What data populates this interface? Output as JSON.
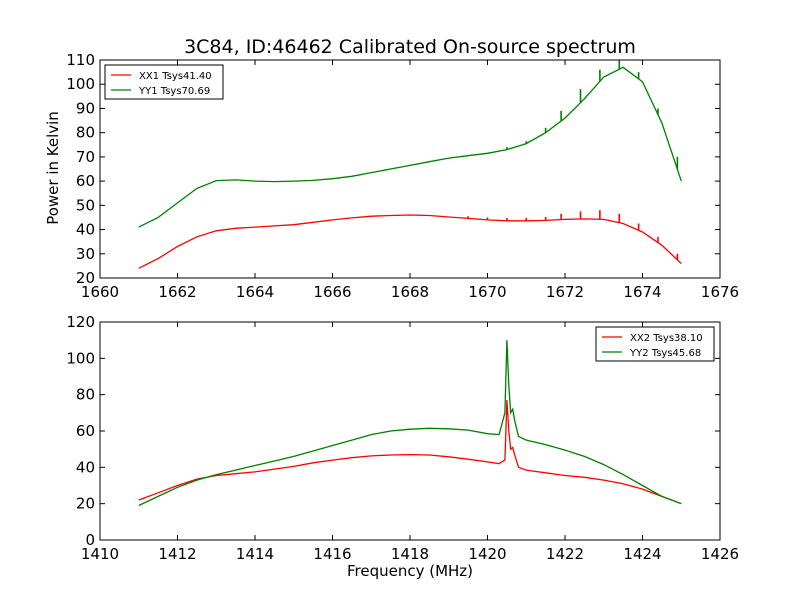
{
  "chart_data": [
    {
      "type": "line",
      "title": "3C84, ID:46462 Calibrated On-source spectrum",
      "xlabel": "",
      "ylabel": "Power in Kelvin",
      "xlim": [
        1660,
        1676
      ],
      "ylim": [
        20,
        110
      ],
      "xticks": [
        1660,
        1662,
        1664,
        1666,
        1668,
        1670,
        1672,
        1674,
        1676
      ],
      "yticks": [
        20,
        30,
        40,
        50,
        60,
        70,
        80,
        90,
        100,
        110
      ],
      "legend_position": "top-left",
      "series": [
        {
          "name": "XX1 Tsys41.40",
          "color": "#ff0000",
          "x": [
            1661.0,
            1661.5,
            1662.0,
            1662.5,
            1663.0,
            1663.5,
            1664.0,
            1664.5,
            1665.0,
            1665.5,
            1666.0,
            1666.5,
            1667.0,
            1667.5,
            1668.0,
            1668.5,
            1669.0,
            1669.5,
            1670.0,
            1670.5,
            1671.0,
            1671.5,
            1672.0,
            1672.5,
            1673.0,
            1673.5,
            1674.0,
            1674.5,
            1675.0
          ],
          "y": [
            24,
            28,
            33,
            37,
            39.5,
            40.5,
            41,
            41.5,
            42,
            43,
            44,
            44.8,
            45.5,
            45.8,
            46,
            45.8,
            45.2,
            44.6,
            44,
            43.6,
            43.6,
            43.8,
            44.2,
            44.4,
            44.2,
            42.5,
            39,
            33.5,
            26
          ],
          "spikes": [
            [
              1669.5,
              45.5
            ],
            [
              1670.0,
              45.0
            ],
            [
              1670.5,
              44.8
            ],
            [
              1671.0,
              44.8
            ],
            [
              1671.5,
              45.2
            ],
            [
              1671.9,
              46.5
            ],
            [
              1672.4,
              47.5
            ],
            [
              1672.9,
              48.0
            ],
            [
              1673.4,
              46.5
            ],
            [
              1673.9,
              42.5
            ],
            [
              1674.4,
              37.0
            ],
            [
              1674.9,
              30.0
            ]
          ]
        },
        {
          "name": "YY1 Tsys70.69",
          "color": "#008000",
          "x": [
            1661.0,
            1661.5,
            1662.0,
            1662.5,
            1663.0,
            1663.5,
            1664.0,
            1664.5,
            1665.0,
            1665.5,
            1666.0,
            1666.5,
            1667.0,
            1667.5,
            1668.0,
            1668.5,
            1669.0,
            1669.5,
            1670.0,
            1670.5,
            1671.0,
            1671.5,
            1672.0,
            1672.5,
            1673.0,
            1673.5,
            1674.0,
            1674.5,
            1675.0
          ],
          "y": [
            41,
            45,
            51,
            57,
            60.2,
            60.5,
            60,
            59.8,
            60,
            60.3,
            61,
            62,
            63.5,
            65,
            66.5,
            68,
            69.5,
            70.5,
            71.5,
            73,
            75.5,
            80,
            86,
            94,
            103,
            107,
            101,
            84,
            60
          ],
          "spikes": [
            [
              1670.5,
              74.0
            ],
            [
              1671.0,
              76.5
            ],
            [
              1671.5,
              82.0
            ],
            [
              1671.9,
              89.0
            ],
            [
              1672.4,
              98.0
            ],
            [
              1672.9,
              106.0
            ],
            [
              1673.4,
              110.0
            ],
            [
              1673.9,
              105.0
            ],
            [
              1674.4,
              90.0
            ],
            [
              1674.9,
              70.0
            ]
          ]
        }
      ]
    },
    {
      "type": "line",
      "title": "",
      "xlabel": "Frequency (MHz)",
      "ylabel": "",
      "xlim": [
        1410,
        1426
      ],
      "ylim": [
        0,
        120
      ],
      "xticks": [
        1410,
        1412,
        1414,
        1416,
        1418,
        1420,
        1422,
        1424,
        1426
      ],
      "yticks": [
        0,
        20,
        40,
        60,
        80,
        100,
        120
      ],
      "legend_position": "top-right",
      "series": [
        {
          "name": "XX2 Tsys38.10",
          "color": "#ff0000",
          "x": [
            1411.0,
            1411.5,
            1412.0,
            1412.5,
            1413.0,
            1413.5,
            1414.0,
            1414.5,
            1415.0,
            1415.5,
            1416.0,
            1416.5,
            1417.0,
            1417.5,
            1418.0,
            1418.5,
            1419.0,
            1419.5,
            1420.0,
            1420.3,
            1420.45,
            1420.5,
            1420.55,
            1420.6,
            1420.65,
            1420.7,
            1420.8,
            1421.0,
            1421.5,
            1422.0,
            1422.5,
            1423.0,
            1423.5,
            1424.0,
            1424.5,
            1425.0
          ],
          "y": [
            22,
            26,
            30,
            33.5,
            35.5,
            36.5,
            37.5,
            39,
            40.5,
            42.5,
            44,
            45.3,
            46.3,
            46.8,
            47,
            46.8,
            45.8,
            44.5,
            43,
            42,
            44,
            77,
            60,
            50,
            51,
            47,
            40,
            38.5,
            37,
            35.5,
            34.5,
            33,
            31,
            28,
            24,
            20
          ]
        },
        {
          "name": "YY2 Tsys45.68",
          "color": "#008000",
          "x": [
            1411.0,
            1411.5,
            1412.0,
            1412.5,
            1413.0,
            1413.5,
            1414.0,
            1414.5,
            1415.0,
            1415.5,
            1416.0,
            1416.5,
            1417.0,
            1417.5,
            1418.0,
            1418.5,
            1419.0,
            1419.5,
            1420.0,
            1420.3,
            1420.45,
            1420.5,
            1420.55,
            1420.6,
            1420.65,
            1420.7,
            1420.8,
            1421.0,
            1421.5,
            1422.0,
            1422.5,
            1423.0,
            1423.5,
            1424.0,
            1424.5,
            1425.0
          ],
          "y": [
            19,
            24,
            29,
            33,
            36,
            38.5,
            41,
            43.5,
            46,
            49,
            52,
            55,
            58,
            60,
            61,
            61.5,
            61.2,
            60.5,
            58.5,
            58,
            70,
            110,
            85,
            70,
            72,
            66,
            57,
            55,
            52.5,
            49.5,
            46,
            41.5,
            36,
            30,
            24,
            20
          ]
        }
      ]
    }
  ]
}
